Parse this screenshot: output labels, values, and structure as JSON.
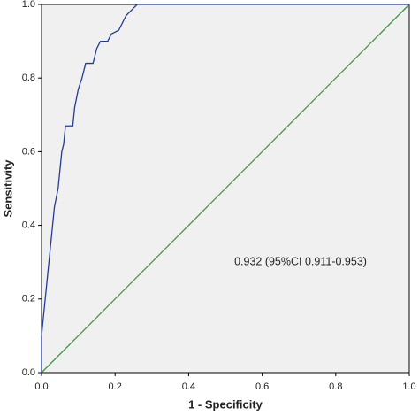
{
  "chart_data": {
    "type": "line",
    "x_label": "1 - Specificity",
    "y_label": "Sensitivity",
    "annotation": "0.932 (95%CI 0.911-0.953)",
    "xlim": [
      0,
      1
    ],
    "ylim": [
      0,
      1
    ],
    "xticks": [
      {
        "value": 0,
        "label": "0.0"
      },
      0.2,
      0.4,
      0.6,
      0.8,
      {
        "value": 1,
        "label": "1.0"
      }
    ],
    "yticks": [
      {
        "value": 0,
        "label": "0.0"
      },
      0.2,
      0.4,
      0.6,
      0.8,
      {
        "value": 1,
        "label": "1.0"
      }
    ],
    "background": "#f0f0f0",
    "series": [
      {
        "color": "#233b96",
        "x": [
          0,
          0,
          0.005,
          0.01,
          0.015,
          0.02,
          0.025,
          0.03,
          0.035,
          0.045,
          0.05,
          0.055,
          0.06,
          0.065,
          0.085,
          0.09,
          0.1,
          0.11,
          0.12,
          0.14,
          0.15,
          0.16,
          0.18,
          0.19,
          0.21,
          0.23,
          0.25,
          0.26,
          1
        ],
        "values": [
          0,
          0.1,
          0.15,
          0.2,
          0.25,
          0.3,
          0.35,
          0.4,
          0.45,
          0.5,
          0.55,
          0.6,
          0.62,
          0.67,
          0.67,
          0.72,
          0.77,
          0.8,
          0.84,
          0.84,
          0.88,
          0.9,
          0.9,
          0.92,
          0.93,
          0.97,
          0.99,
          1,
          1
        ]
      },
      {
        "color": "#3c9a3c",
        "x": [
          0,
          1
        ],
        "values": [
          0,
          1
        ]
      }
    ]
  }
}
